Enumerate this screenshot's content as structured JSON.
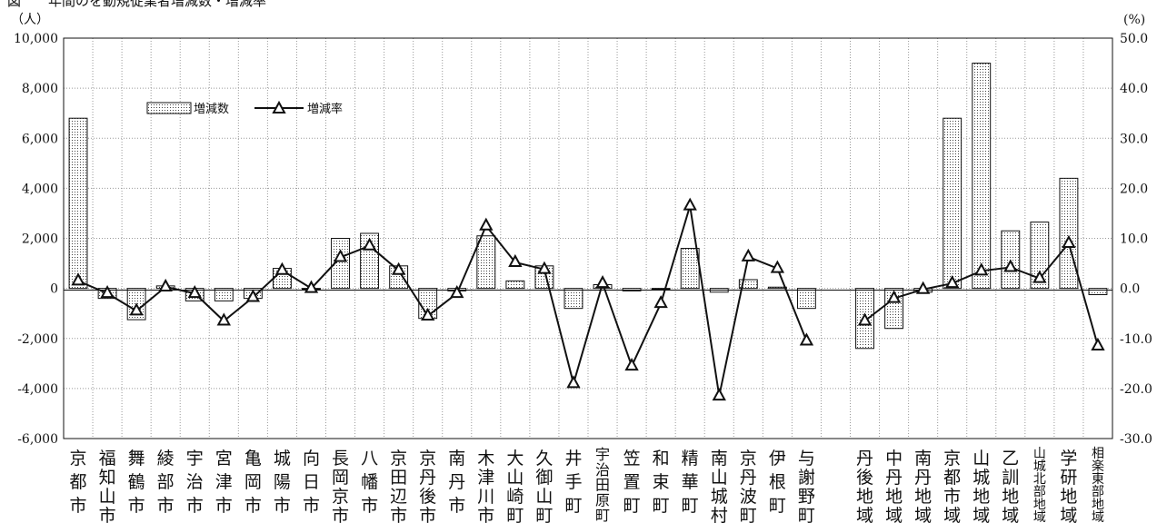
{
  "chart_data": {
    "type": "bar",
    "title": "図　　年間のを動規従業者増減数・増減率",
    "y_left_unit": "（人）",
    "y_right_unit": "(%)",
    "y_left_ticks": [
      "10,000",
      "8,000",
      "6,000",
      "4,000",
      "2,000",
      "0",
      "-2,000",
      "-4,000",
      "-6,000"
    ],
    "y_right_ticks": [
      "50.0",
      "40.0",
      "30.0",
      "20.0",
      "10.0",
      "0.0",
      "-10.0",
      "-20.0",
      "-30.0"
    ],
    "ylim_left": [
      -6000,
      10000
    ],
    "ylim_right": [
      -30,
      50
    ],
    "grid": true,
    "legend_position": "top-left",
    "categories": [
      "京都市",
      "福知山市",
      "舞鶴市",
      "綾部市",
      "宇治市",
      "宮津市",
      "亀岡市",
      "城陽市",
      "向日市",
      "長岡京市",
      "八幡市",
      "京田辺市",
      "京丹後市",
      "南丹市",
      "木津川市",
      "大山崎町",
      "久御山町",
      "井手町",
      "宇治田原町",
      "笠置町",
      "和束町",
      "精華町",
      "南山城村",
      "京丹波町",
      "伊根町",
      "与謝野町",
      "",
      "丹後地域",
      "中丹地域",
      "南丹地域",
      "京都市域",
      "山城地域",
      "乙訓地域",
      "山城北部地域",
      "学研地域",
      "相楽東部地域"
    ],
    "series": [
      {
        "name": "増減数",
        "kind": "bar",
        "values": [
          6800,
          -400,
          -1250,
          100,
          -500,
          -500,
          -400,
          800,
          0,
          2000,
          2200,
          900,
          -1200,
          -100,
          2100,
          300,
          900,
          -800,
          150,
          -100,
          0,
          1600,
          -150,
          350,
          50,
          -800,
          null,
          -2400,
          -1600,
          -150,
          6800,
          9000,
          2300,
          2650,
          4400,
          -250
        ]
      },
      {
        "name": "増減率",
        "kind": "line",
        "values": [
          1.5,
          -1.0,
          -4.5,
          0.3,
          -1.0,
          -6.5,
          -1.8,
          3.6,
          0.0,
          6.2,
          8.5,
          3.6,
          -5.5,
          -1.0,
          12.5,
          5.2,
          3.8,
          -19.0,
          1.0,
          -15.5,
          -3.0,
          16.5,
          -21.5,
          6.3,
          4.0,
          -10.5,
          null,
          -6.5,
          -2.0,
          -0.2,
          1.0,
          3.5,
          4.2,
          2.0,
          9.0,
          -11.5
        ]
      }
    ]
  },
  "colors": {
    "bar_fill": "#ffffff",
    "bar_dots": "#444444",
    "line": "#111111",
    "grid": "#999999"
  }
}
